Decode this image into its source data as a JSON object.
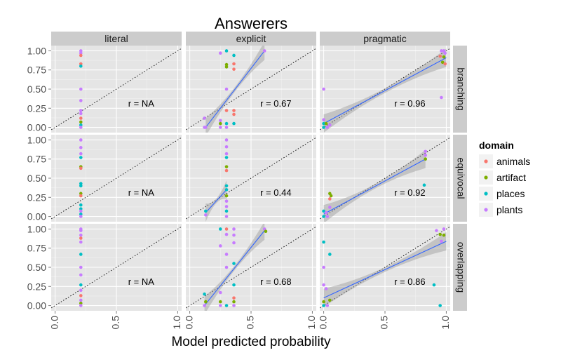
{
  "chart_data": {
    "type": "scatter",
    "title": "Answerers",
    "xlabel": "Model predicted probability",
    "ylabel": "",
    "xlim": [
      0,
      1
    ],
    "ylim": [
      0,
      1
    ],
    "x_ticks": [
      "0.0",
      "0.5",
      "1.0"
    ],
    "y_ticks": [
      "0.00",
      "0.25",
      "0.50",
      "0.75",
      "1.00"
    ],
    "facet_columns": [
      "literal",
      "explicit",
      "pragmatic"
    ],
    "facet_rows": [
      "branching",
      "equivocal",
      "overlapping"
    ],
    "grid": true,
    "reference_line": "y = x (dotted)",
    "legend": {
      "title": "domain",
      "position": "right",
      "entries": [
        {
          "label": "animals",
          "color": "#F8766D"
        },
        {
          "label": "artifact",
          "color": "#7CAE00"
        },
        {
          "label": "places",
          "color": "#00BFC4"
        },
        {
          "label": "plants",
          "color": "#C77CFF"
        }
      ]
    },
    "panels": [
      {
        "row": "branching",
        "col": "literal",
        "r_label": "r = NA",
        "fit": null,
        "points": [
          [
            0.21,
            1.0,
            "plants"
          ],
          [
            0.21,
            0.97,
            "plants"
          ],
          [
            0.21,
            0.94,
            "animals"
          ],
          [
            0.21,
            0.83,
            "animals"
          ],
          [
            0.21,
            0.8,
            "places"
          ],
          [
            0.21,
            0.5,
            "plants"
          ],
          [
            0.21,
            0.35,
            "plants"
          ],
          [
            0.21,
            0.22,
            "plants"
          ],
          [
            0.21,
            0.18,
            "plants"
          ],
          [
            0.21,
            0.12,
            "animals"
          ],
          [
            0.21,
            0.07,
            "artifact"
          ],
          [
            0.21,
            0.03,
            "places"
          ],
          [
            0.21,
            0.0,
            "plants"
          ]
        ]
      },
      {
        "row": "branching",
        "col": "explicit",
        "r_label": "r = 0.67",
        "fit": {
          "x0": 0.13,
          "y0": 0.0,
          "x1": 0.61,
          "y1": 1.0
        },
        "points": [
          [
            0.61,
            1.0,
            "plants"
          ],
          [
            0.3,
            1.0,
            "places"
          ],
          [
            0.25,
            0.97,
            "plants"
          ],
          [
            0.36,
            0.94,
            "places"
          ],
          [
            0.3,
            0.82,
            "artifact"
          ],
          [
            0.3,
            0.79,
            "artifact"
          ],
          [
            0.36,
            0.83,
            "animals"
          ],
          [
            0.36,
            0.76,
            "animals"
          ],
          [
            0.3,
            0.5,
            "plants"
          ],
          [
            0.3,
            0.22,
            "animals"
          ],
          [
            0.36,
            0.22,
            "animals"
          ],
          [
            0.36,
            0.17,
            "animals"
          ],
          [
            0.12,
            0.12,
            "plants"
          ],
          [
            0.25,
            0.09,
            "plants"
          ],
          [
            0.25,
            0.05,
            "artifact"
          ],
          [
            0.3,
            0.05,
            "places"
          ],
          [
            0.36,
            0.05,
            "places"
          ],
          [
            0.12,
            0.0,
            "plants"
          ],
          [
            0.13,
            0.0,
            "plants"
          ],
          [
            0.25,
            0.0,
            "plants"
          ],
          [
            0.3,
            0.0,
            "plants"
          ]
        ]
      },
      {
        "row": "branching",
        "col": "pragmatic",
        "r_label": "r = 0.96",
        "fit": {
          "x0": 0.0,
          "y0": 0.05,
          "x1": 1.0,
          "y1": 0.91
        },
        "points": [
          [
            0.96,
            1.0,
            "plants"
          ],
          [
            0.98,
            1.0,
            "plants"
          ],
          [
            0.99,
            0.97,
            "plants"
          ],
          [
            0.95,
            0.93,
            "animals"
          ],
          [
            0.98,
            0.92,
            "artifact"
          ],
          [
            0.97,
            0.85,
            "artifact"
          ],
          [
            0.99,
            0.83,
            "animals"
          ],
          [
            0.96,
            0.39,
            "plants"
          ],
          [
            0.0,
            0.5,
            "plants"
          ],
          [
            0.0,
            0.1,
            "plants"
          ],
          [
            0.0,
            0.05,
            "places"
          ],
          [
            0.02,
            0.05,
            "artifact"
          ],
          [
            0.05,
            0.03,
            "plants"
          ],
          [
            0.0,
            0.0,
            "places"
          ],
          [
            0.03,
            0.0,
            "plants"
          ]
        ]
      },
      {
        "row": "equivocal",
        "col": "literal",
        "r_label": "r = NA",
        "fit": null,
        "points": [
          [
            0.21,
            1.0,
            "plants"
          ],
          [
            0.21,
            0.9,
            "plants"
          ],
          [
            0.21,
            0.82,
            "plants"
          ],
          [
            0.21,
            0.77,
            "places"
          ],
          [
            0.21,
            0.65,
            "artifact"
          ],
          [
            0.21,
            0.63,
            "animals"
          ],
          [
            0.21,
            0.43,
            "places"
          ],
          [
            0.21,
            0.4,
            "places"
          ],
          [
            0.21,
            0.3,
            "artifact"
          ],
          [
            0.21,
            0.27,
            "animals"
          ],
          [
            0.21,
            0.15,
            "places"
          ],
          [
            0.21,
            0.1,
            "places"
          ],
          [
            0.21,
            0.07,
            "plants"
          ],
          [
            0.21,
            0.03,
            "places"
          ],
          [
            0.21,
            0.0,
            "plants"
          ]
        ]
      },
      {
        "row": "equivocal",
        "col": "explicit",
        "r_label": "r = 0.44",
        "fit": {
          "x0": 0.13,
          "y0": 0.05,
          "x1": 0.3,
          "y1": 0.35
        },
        "points": [
          [
            0.3,
            1.0,
            "plants"
          ],
          [
            0.3,
            0.91,
            "plants"
          ],
          [
            0.3,
            0.82,
            "plants"
          ],
          [
            0.3,
            0.77,
            "places"
          ],
          [
            0.3,
            0.65,
            "artifact"
          ],
          [
            0.3,
            0.6,
            "animals"
          ],
          [
            0.3,
            0.4,
            "places"
          ],
          [
            0.3,
            0.35,
            "places"
          ],
          [
            0.3,
            0.27,
            "artifact"
          ],
          [
            0.3,
            0.2,
            "plants"
          ],
          [
            0.13,
            0.07,
            "places"
          ],
          [
            0.3,
            0.13,
            "plants"
          ],
          [
            0.3,
            0.07,
            "places"
          ],
          [
            0.13,
            0.02,
            "plants"
          ],
          [
            0.3,
            0.0,
            "plants"
          ]
        ]
      },
      {
        "row": "equivocal",
        "col": "pragmatic",
        "r_label": "r = 0.92",
        "fit": {
          "x0": 0.0,
          "y0": 0.03,
          "x1": 0.83,
          "y1": 0.75
        },
        "points": [
          [
            0.83,
            0.85,
            "plants"
          ],
          [
            0.83,
            0.8,
            "plants"
          ],
          [
            0.83,
            0.75,
            "artifact"
          ],
          [
            0.82,
            0.41,
            "places"
          ],
          [
            0.05,
            0.3,
            "artifact"
          ],
          [
            0.06,
            0.27,
            "artifact"
          ],
          [
            0.05,
            0.23,
            "animals"
          ],
          [
            0.0,
            0.07,
            "places"
          ],
          [
            0.02,
            0.05,
            "plants"
          ],
          [
            0.05,
            0.12,
            "plants"
          ],
          [
            0.0,
            0.0,
            "places"
          ],
          [
            0.03,
            0.0,
            "plants"
          ]
        ]
      },
      {
        "row": "overlapping",
        "col": "literal",
        "r_label": "r = NA",
        "fit": null,
        "points": [
          [
            0.21,
            1.0,
            "plants"
          ],
          [
            0.21,
            0.98,
            "plants"
          ],
          [
            0.21,
            0.92,
            "plants"
          ],
          [
            0.21,
            0.88,
            "animals"
          ],
          [
            0.21,
            0.83,
            "plants"
          ],
          [
            0.21,
            0.67,
            "places"
          ],
          [
            0.21,
            0.5,
            "plants"
          ],
          [
            0.21,
            0.4,
            "plants"
          ],
          [
            0.21,
            0.27,
            "places"
          ],
          [
            0.21,
            0.2,
            "plants"
          ],
          [
            0.21,
            0.13,
            "animals"
          ],
          [
            0.21,
            0.07,
            "plants"
          ],
          [
            0.21,
            0.03,
            "artifact"
          ],
          [
            0.21,
            0.0,
            "plants"
          ]
        ]
      },
      {
        "row": "overlapping",
        "col": "explicit",
        "r_label": "r = 0.68",
        "fit": {
          "x0": 0.12,
          "y0": 0.0,
          "x1": 0.61,
          "y1": 0.98
        },
        "points": [
          [
            0.61,
            1.0,
            "plants"
          ],
          [
            0.62,
            0.97,
            "artifact"
          ],
          [
            0.25,
            1.0,
            "places"
          ],
          [
            0.3,
            1.0,
            "animals"
          ],
          [
            0.36,
            1.0,
            "plants"
          ],
          [
            0.3,
            0.93,
            "plants"
          ],
          [
            0.36,
            0.92,
            "plants"
          ],
          [
            0.36,
            0.82,
            "plants"
          ],
          [
            0.25,
            0.78,
            "plants"
          ],
          [
            0.3,
            0.67,
            "plants"
          ],
          [
            0.36,
            0.55,
            "places"
          ],
          [
            0.3,
            0.5,
            "plants"
          ],
          [
            0.36,
            0.27,
            "places"
          ],
          [
            0.25,
            0.17,
            "plants"
          ],
          [
            0.12,
            0.15,
            "places"
          ],
          [
            0.36,
            0.1,
            "animals"
          ],
          [
            0.25,
            0.05,
            "artifact"
          ],
          [
            0.36,
            0.05,
            "artifact"
          ],
          [
            0.13,
            0.05,
            "artifact"
          ],
          [
            0.12,
            0.0,
            "plants"
          ],
          [
            0.25,
            0.0,
            "plants"
          ],
          [
            0.3,
            0.0,
            "places"
          ],
          [
            0.36,
            0.0,
            "plants"
          ]
        ]
      },
      {
        "row": "overlapping",
        "col": "pragmatic",
        "r_label": "r = 0.86",
        "fit": {
          "x0": 0.0,
          "y0": 0.1,
          "x1": 1.0,
          "y1": 0.84
        },
        "points": [
          [
            0.98,
            1.0,
            "plants"
          ],
          [
            0.92,
            0.98,
            "plants"
          ],
          [
            0.95,
            0.93,
            "artifact"
          ],
          [
            0.98,
            0.92,
            "artifact"
          ],
          [
            0.96,
            0.84,
            "plants"
          ],
          [
            0.9,
            0.27,
            "places"
          ],
          [
            0.95,
            0.0,
            "places"
          ],
          [
            0.0,
            0.83,
            "places"
          ],
          [
            0.05,
            0.67,
            "places"
          ],
          [
            0.0,
            0.5,
            "plants"
          ],
          [
            0.0,
            0.27,
            "plants"
          ],
          [
            0.02,
            0.22,
            "plants"
          ],
          [
            0.0,
            0.05,
            "artifact"
          ],
          [
            0.05,
            0.07,
            "artifact"
          ],
          [
            0.0,
            0.0,
            "places"
          ],
          [
            0.03,
            0.0,
            "plants"
          ]
        ]
      }
    ]
  }
}
